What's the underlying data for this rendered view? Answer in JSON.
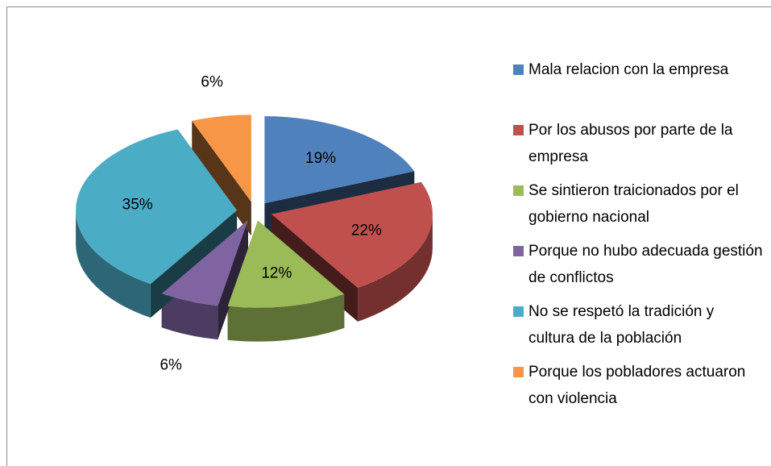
{
  "chart_data": {
    "type": "pie",
    "categories": [
      "Mala relacion con la empresa",
      "Por los abusos por parte de la empresa",
      "Se sintieron traicionados por el gobierno nacional",
      "Porque no hubo adecuada gestión de conflictos",
      "No se respetó la tradición y cultura de la población",
      "Porque los pobladores actuaron con violencia"
    ],
    "values": [
      19,
      22,
      12,
      6,
      35,
      6
    ],
    "value_labels": [
      "19%",
      "22%",
      "12%",
      "6%",
      "35%",
      "6%"
    ],
    "colors": [
      "#4f81bd",
      "#c0504d",
      "#9bbb59",
      "#8064a2",
      "#4bacc6",
      "#f79646"
    ],
    "legend": "right"
  }
}
